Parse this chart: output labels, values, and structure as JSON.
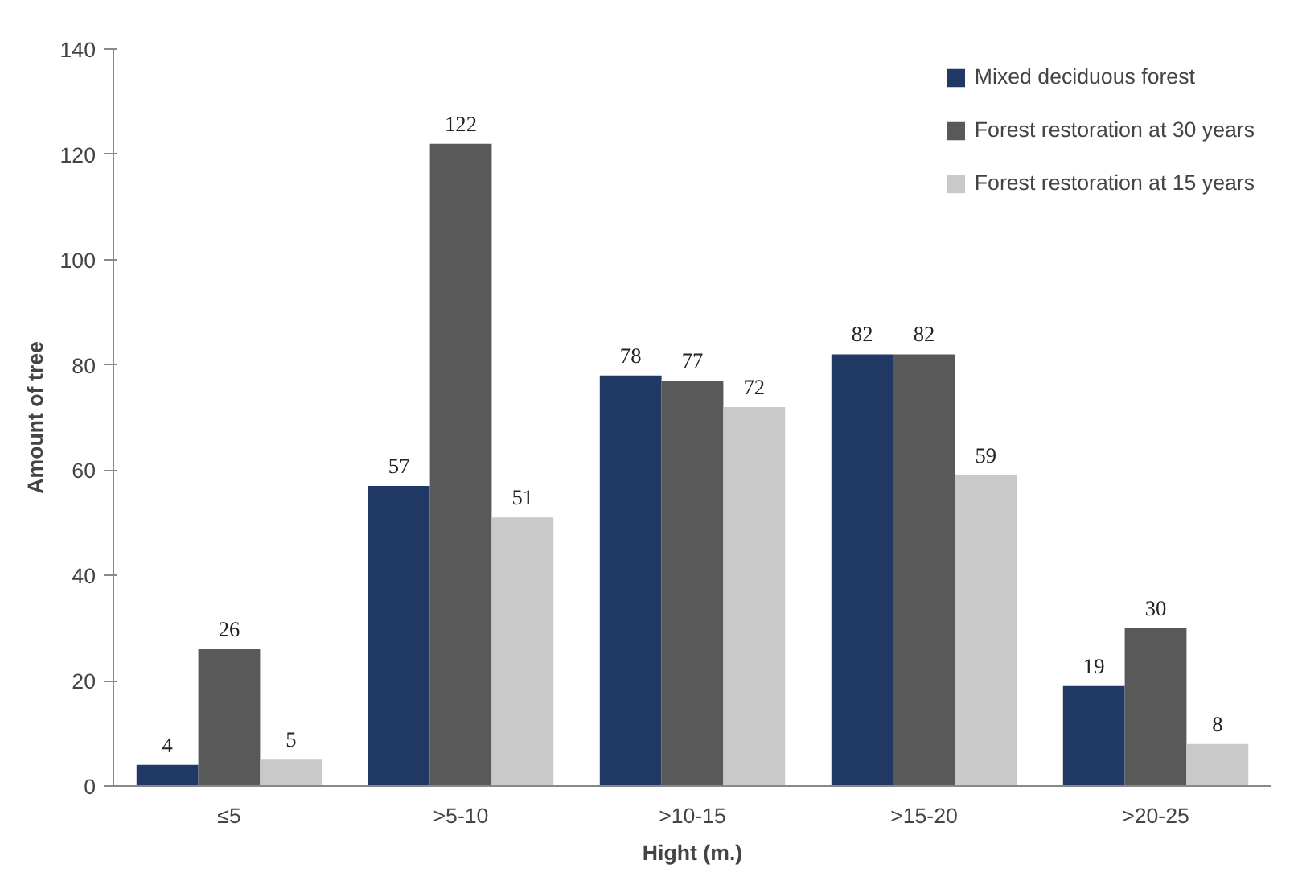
{
  "chart_data": {
    "type": "bar",
    "xlabel": "Hight (m.)",
    "ylabel": "Amount of tree",
    "categories": [
      "≤5",
      ">5-10",
      ">10-15",
      ">15-20",
      ">20-25"
    ],
    "series": [
      {
        "name": "Mixed deciduous forest",
        "color": "#203864",
        "values": [
          4,
          57,
          78,
          82,
          19
        ]
      },
      {
        "name": "Forest restoration at 30 years",
        "color": "#595959",
        "values": [
          26,
          122,
          77,
          82,
          30
        ]
      },
      {
        "name": "Forest restoration at 15 years",
        "color": "#c9c9c9",
        "values": [
          5,
          51,
          72,
          59,
          8
        ]
      }
    ],
    "ylim": [
      0,
      140
    ],
    "yticks": [
      0,
      20,
      40,
      60,
      80,
      100,
      120,
      140
    ],
    "grid": false,
    "legend": "top right",
    "data_labels": true
  }
}
